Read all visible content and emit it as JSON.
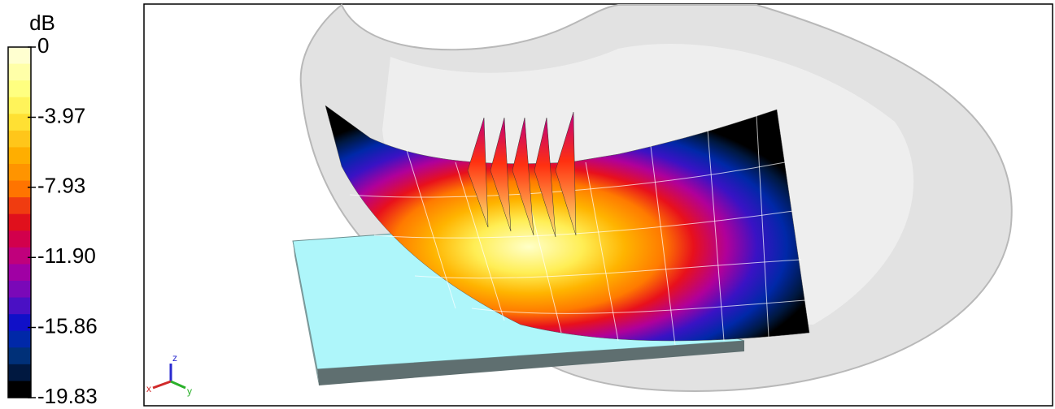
{
  "colorbar": {
    "title": "dB",
    "lim": [
      -19.83,
      0
    ],
    "ticks": [
      0,
      -3.97,
      -7.93,
      {
        "value": -11.9,
        "label": "-11.90"
      },
      -15.86,
      -19.83
    ],
    "colors": [
      "#ffffd0",
      "#ffffa8",
      "#ffff80",
      "#fff35a",
      "#ffe033",
      "#ffc61a",
      "#ffae00",
      "#ff9400",
      "#ff7400",
      "#f03c10",
      "#e0101c",
      "#d2004c",
      "#c0007c",
      "#a000a4",
      "#7a08b8",
      "#4a10c4",
      "#1010c8",
      "#0028a8",
      "#003078",
      "#001840",
      "#000000"
    ]
  },
  "axes_triad": {
    "x": "x",
    "y": "y",
    "z": "z"
  }
}
